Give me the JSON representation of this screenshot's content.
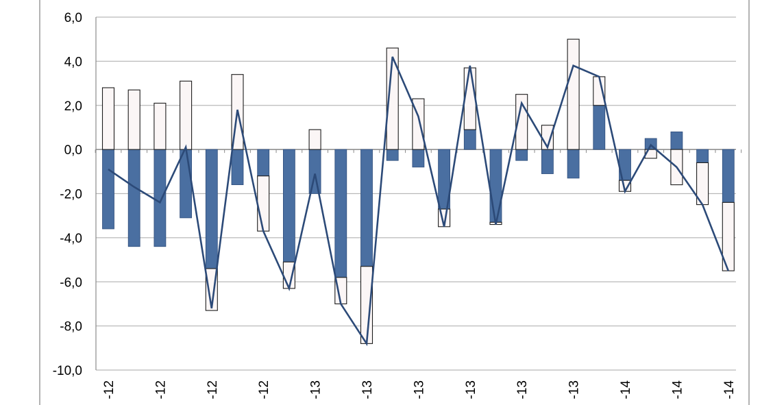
{
  "chart_data": {
    "type": "bar",
    "title": "",
    "xlabel": "",
    "ylabel": "",
    "ylim": [
      -10,
      6
    ],
    "ytick_step": 2,
    "ytick_labels": [
      "6,0",
      "4,0",
      "2,0",
      "0,0",
      "-2,0",
      "-4,0",
      "-6,0",
      "-8,0",
      "-10,0"
    ],
    "grid": true,
    "stacked": true,
    "x_tick_labels": [
      {
        "index": 0,
        "text": "-12"
      },
      {
        "index": 2,
        "text": "-12"
      },
      {
        "index": 4,
        "text": "-12"
      },
      {
        "index": 6,
        "text": "-12"
      },
      {
        "index": 8,
        "text": "-13"
      },
      {
        "index": 10,
        "text": "-13"
      },
      {
        "index": 12,
        "text": "-13"
      },
      {
        "index": 14,
        "text": "-13"
      },
      {
        "index": 16,
        "text": "-13"
      },
      {
        "index": 18,
        "text": "-13"
      },
      {
        "index": 20,
        "text": "-14"
      },
      {
        "index": 22,
        "text": "-14"
      },
      {
        "index": 24,
        "text": "-14"
      }
    ],
    "series": [
      {
        "kind": "bar",
        "color": "#4a6fa1",
        "values": [
          -3.6,
          -4.4,
          -4.4,
          -3.1,
          -5.4,
          -1.6,
          -1.2,
          -5.1,
          -2.0,
          -5.8,
          -5.3,
          -0.5,
          -0.8,
          -2.7,
          0.9,
          -3.3,
          -0.5,
          -1.1,
          -1.3,
          2.0,
          -1.4,
          0.5,
          0.8,
          -0.6,
          -2.4
        ]
      },
      {
        "kind": "bar",
        "color": "#fbf6f6",
        "values": [
          2.8,
          2.7,
          2.1,
          3.1,
          -1.9,
          3.4,
          -2.5,
          -1.2,
          0.9,
          -1.2,
          -3.5,
          4.6,
          2.3,
          -0.8,
          2.8,
          -0.1,
          2.5,
          1.1,
          5.0,
          1.3,
          -0.5,
          -0.4,
          -1.6,
          -1.9,
          -3.1
        ]
      },
      {
        "kind": "line",
        "color": "#2c4a78",
        "values": [
          -0.9,
          -1.7,
          -2.4,
          0.1,
          -7.2,
          1.8,
          -3.7,
          -6.3,
          -1.1,
          -7.0,
          -8.8,
          4.2,
          1.5,
          -3.5,
          3.8,
          -3.4,
          2.1,
          0.1,
          3.8,
          3.3,
          -1.9,
          0.2,
          -0.8,
          -2.5,
          -5.5
        ]
      }
    ]
  }
}
